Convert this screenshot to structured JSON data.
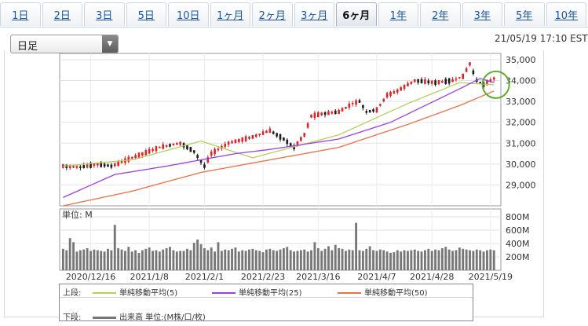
{
  "tabs": [
    {
      "label": "1日"
    },
    {
      "label": "2日"
    },
    {
      "label": "3日"
    },
    {
      "label": "5日"
    },
    {
      "label": "10日"
    },
    {
      "label": "1ヶ月"
    },
    {
      "label": "2ヶ月"
    },
    {
      "label": "3ヶ月"
    },
    {
      "label": "6ヶ月"
    },
    {
      "label": "1年"
    },
    {
      "label": "2年"
    },
    {
      "label": "3年"
    },
    {
      "label": "5年"
    },
    {
      "label": "10年"
    }
  ],
  "active_tab": "6ヶ月",
  "period_select": {
    "value": "日足"
  },
  "timestamp": "21/05/19 17:10 EST",
  "colors": {
    "up": "#d9262a",
    "down": "#1d1d1d",
    "ma5": "#b5cf5a",
    "ma25": "#9b3fe8",
    "ma50": "#f26d45",
    "volume": "#777777",
    "highlight": "#5fae2c"
  },
  "legend": {
    "top_label": "上段:",
    "bottom_label": "下段:",
    "ma5": "単純移動平均(5)",
    "ma25": "単純移動平均(25)",
    "ma50": "単純移動平均(50)",
    "volume": "出来高 単位:(M株/口/枚)"
  },
  "chart_data": [
    {
      "type": "candlestick",
      "y_ticks": [
        "35,000",
        "34,000",
        "33,000",
        "32,000",
        "31,000",
        "30,000",
        "29,000"
      ],
      "ylim": [
        28000,
        35300
      ],
      "x_tick_labels": [
        "2020/12/16",
        "2021/1/8",
        "2021/2/1",
        "2021/2/23",
        "2021/3/16",
        "2021/4/7",
        "2021/4/28",
        "2021/5/19"
      ],
      "grid": true,
      "series": [
        {
          "name": "単純移動平均(5)",
          "values_anchor": [
            [
              0,
              29900
            ],
            [
              20,
              30200
            ],
            [
              40,
              31100
            ],
            [
              55,
              30300
            ],
            [
              80,
              31400
            ],
            [
              100,
              32900
            ],
            [
              115,
              33900
            ],
            [
              125,
              33800
            ]
          ]
        },
        {
          "name": "単純移動平均(25)",
          "values_anchor": [
            [
              0,
              28400
            ],
            [
              15,
              29500
            ],
            [
              30,
              29900
            ],
            [
              50,
              30500
            ],
            [
              60,
              30700
            ],
            [
              80,
              31200
            ],
            [
              95,
              32000
            ],
            [
              105,
              32800
            ],
            [
              115,
              33600
            ],
            [
              121,
              34100
            ],
            [
              125,
              33900
            ]
          ]
        },
        {
          "name": "単純移動平均(50)",
          "values_anchor": [
            [
              0,
              28000
            ],
            [
              20,
              28700
            ],
            [
              40,
              29600
            ],
            [
              60,
              30200
            ],
            [
              80,
              30800
            ],
            [
              100,
              31900
            ],
            [
              115,
              32800
            ],
            [
              125,
              33500
            ]
          ]
        }
      ],
      "candles_anchor": [
        [
          0,
          29900
        ],
        [
          5,
          29850
        ],
        [
          10,
          30000
        ],
        [
          14,
          29900
        ],
        [
          20,
          30300
        ],
        [
          28,
          30800
        ],
        [
          34,
          31000
        ],
        [
          38,
          30600
        ],
        [
          41,
          29900
        ],
        [
          43,
          30500
        ],
        [
          48,
          31000
        ],
        [
          55,
          31300
        ],
        [
          60,
          31600
        ],
        [
          64,
          31200
        ],
        [
          67,
          30800
        ],
        [
          70,
          31400
        ],
        [
          72,
          32300
        ],
        [
          75,
          32400
        ],
        [
          80,
          32500
        ],
        [
          84,
          32900
        ],
        [
          86,
          33000
        ],
        [
          88,
          32500
        ],
        [
          91,
          32600
        ],
        [
          94,
          33300
        ],
        [
          97,
          33500
        ],
        [
          102,
          34000
        ],
        [
          108,
          33900
        ],
        [
          113,
          34000
        ],
        [
          116,
          34200
        ],
        [
          118,
          34800
        ],
        [
          120,
          34000
        ],
        [
          122,
          33800
        ],
        [
          125,
          34100
        ]
      ],
      "annotations": [
        {
          "type": "circle",
          "at_x_index": 126,
          "at_y": 33800
        }
      ]
    },
    {
      "type": "bar",
      "title": "単位: M",
      "y_ticks": [
        "800M",
        "600M",
        "400M",
        "200M"
      ],
      "ylim": [
        0,
        800
      ],
      "bar_count": 126,
      "values": [
        320,
        300,
        480,
        420,
        280,
        300,
        310,
        330,
        290,
        310,
        300,
        290,
        280,
        320,
        300,
        680,
        330,
        310,
        290,
        350,
        280,
        300,
        260,
        300,
        320,
        340,
        290,
        300,
        280,
        310,
        330,
        350,
        300,
        280,
        290,
        290,
        320,
        300,
        410,
        460,
        390,
        330,
        300,
        340,
        280,
        420,
        290,
        310,
        300,
        320,
        340,
        280,
        300,
        290,
        310,
        320,
        300,
        290,
        270,
        310,
        320,
        300,
        290,
        310,
        330,
        350,
        300,
        280,
        290,
        300,
        310,
        280,
        300,
        420,
        330,
        290,
        320,
        360,
        300,
        380,
        330,
        320,
        290,
        310,
        300,
        710,
        300,
        290,
        320,
        360,
        300,
        290,
        310,
        300,
        280,
        260,
        270,
        300,
        280,
        300,
        290,
        300,
        310,
        290,
        280,
        300,
        320,
        290,
        310,
        300,
        330,
        350,
        310,
        290,
        300,
        340,
        320,
        310,
        300,
        290,
        310,
        300,
        280,
        300,
        310,
        300
      ]
    }
  ]
}
